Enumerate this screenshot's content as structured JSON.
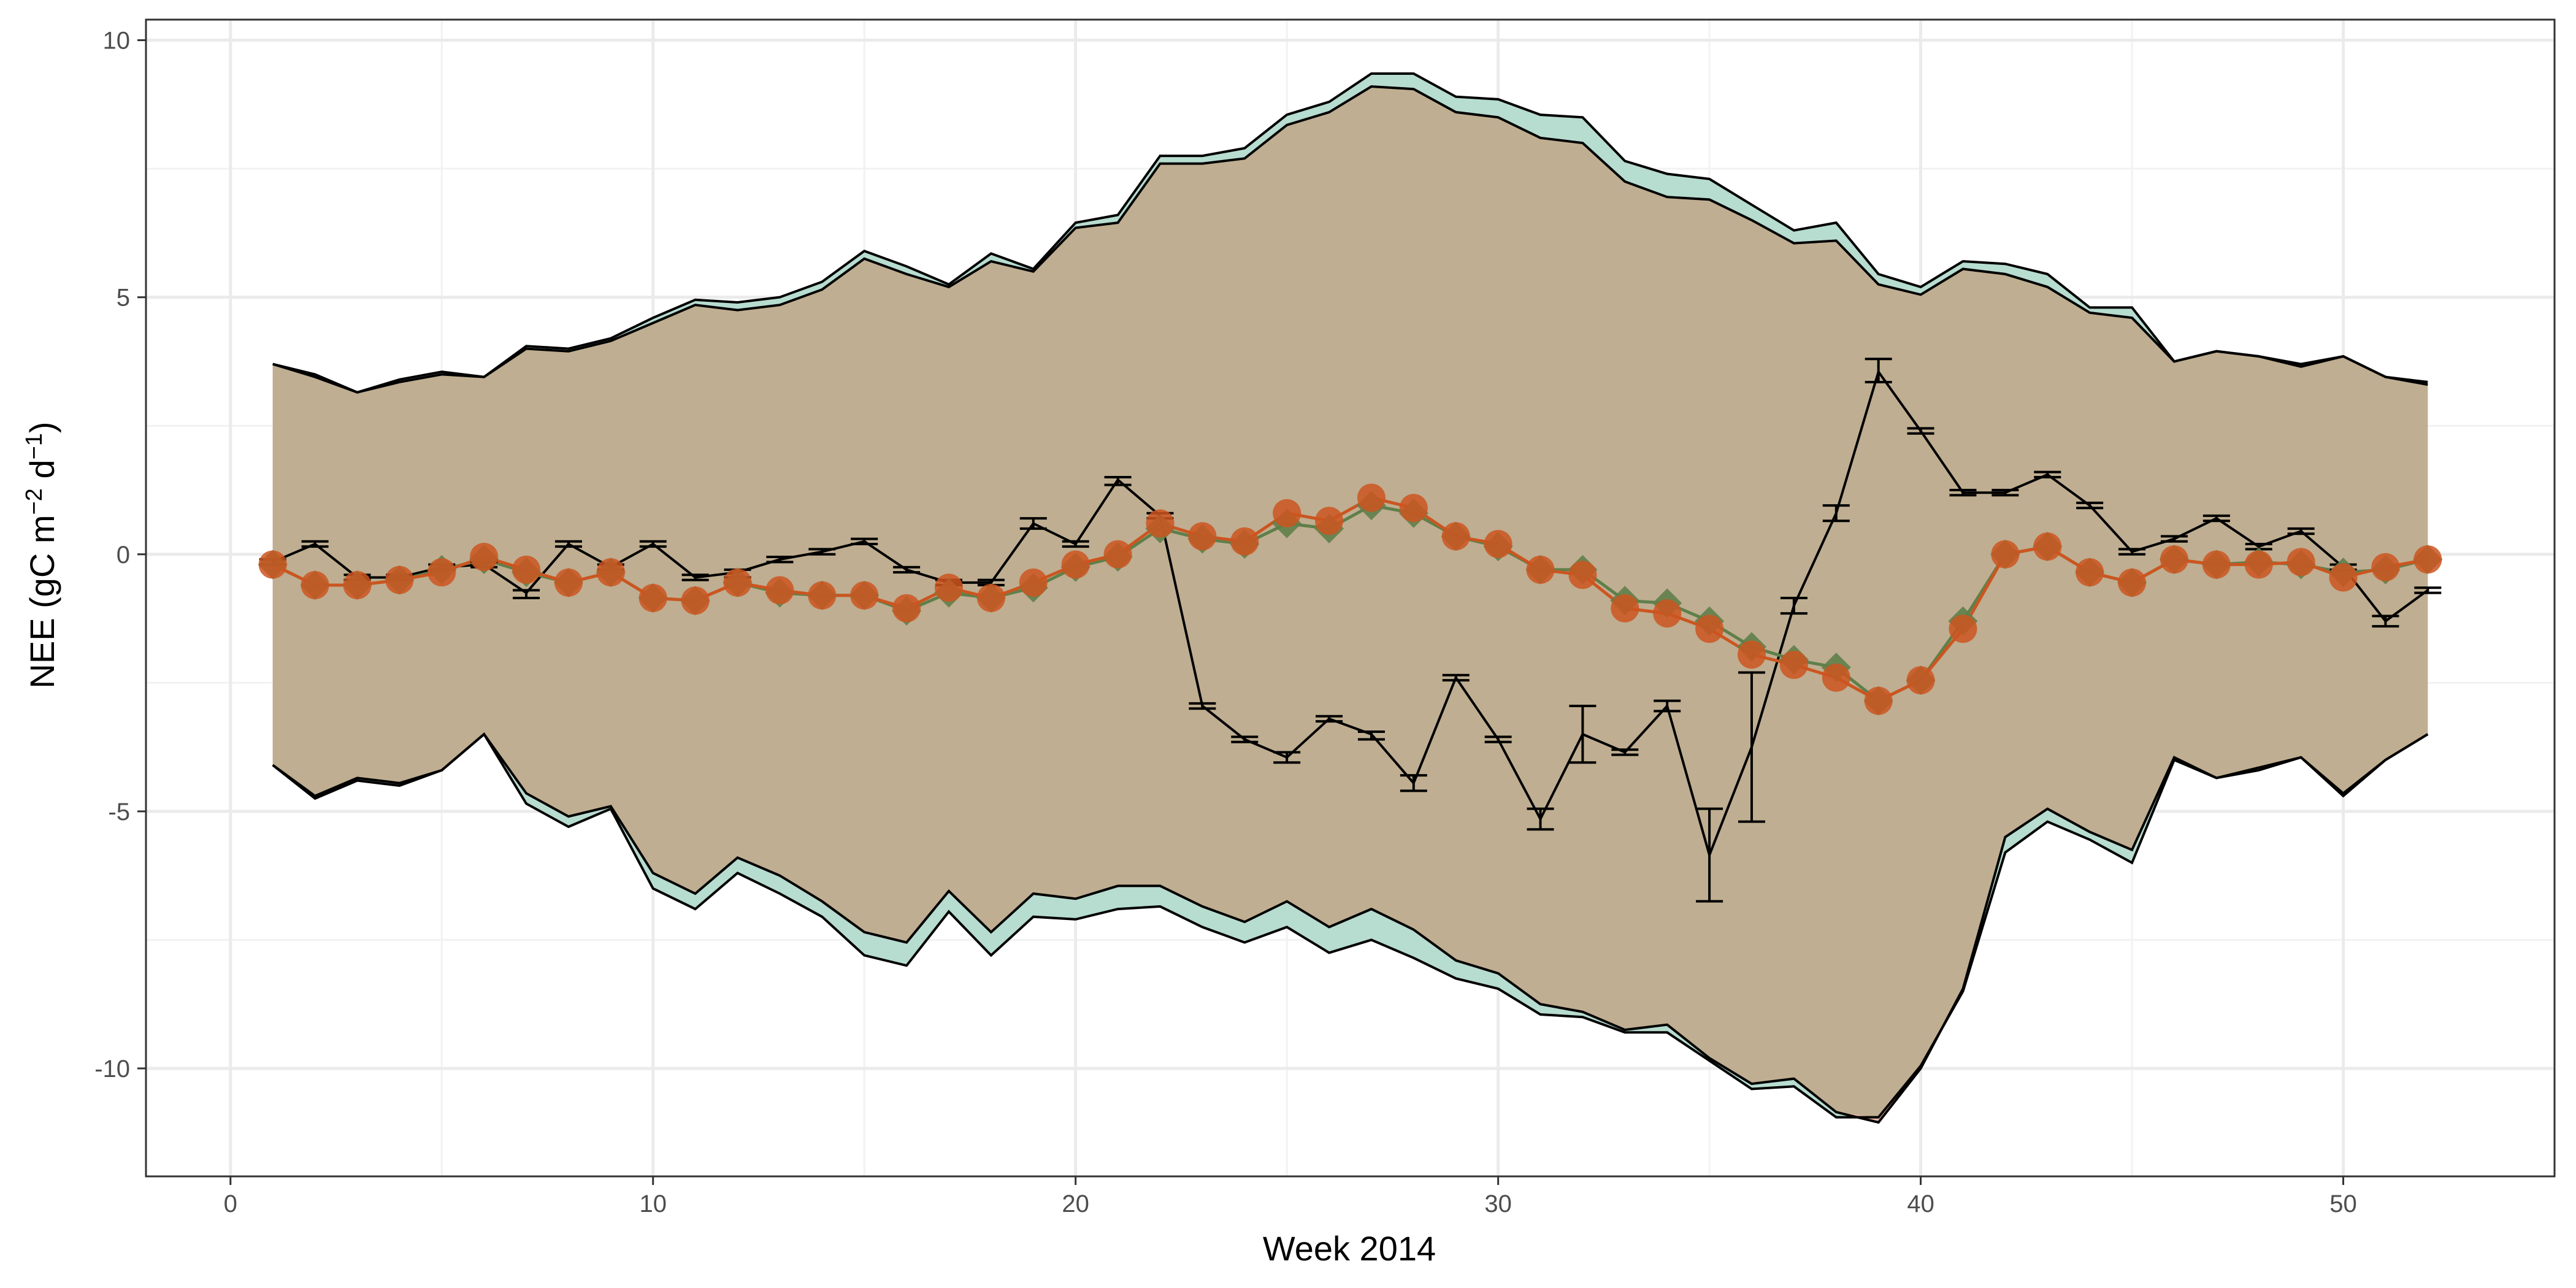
{
  "chart_data": {
    "type": "line",
    "xlabel": "Week 2014",
    "ylabel": {
      "main": "NEE (gC m",
      "sup1": "−2",
      "mid": " d",
      "sup2": "−1",
      "end": ")"
    },
    "xlim": [
      -2,
      55
    ],
    "ylim": [
      -12.1,
      10.4
    ],
    "x_ticks": [
      0,
      10,
      20,
      30,
      40,
      50
    ],
    "x_tick_labels": [
      "0",
      "10",
      "20",
      "30",
      "40",
      "50"
    ],
    "y_ticks": [
      -10,
      -5,
      0,
      5,
      10
    ],
    "y_tick_labels": [
      "-10",
      "-5",
      "0",
      "5",
      "10"
    ],
    "grid": true,
    "colors": {
      "band_teal": "#b7dcd0",
      "band_red": "#e9b7a9",
      "band_overlap": "#bfae91",
      "green_series": "#5f7f4a",
      "orange_series": "#cc5520",
      "observed": "#000000"
    },
    "x": [
      1,
      2,
      3,
      4,
      5,
      6,
      7,
      8,
      9,
      10,
      11,
      12,
      13,
      14,
      15,
      16,
      17,
      18,
      19,
      20,
      21,
      22,
      23,
      24,
      25,
      26,
      27,
      28,
      29,
      30,
      31,
      32,
      33,
      34,
      35,
      36,
      37,
      38,
      39,
      40,
      41,
      42,
      43,
      44,
      45,
      46,
      47,
      48,
      49,
      50,
      51,
      52
    ],
    "bands": {
      "teal_upper": [
        3.7,
        3.5,
        3.15,
        3.4,
        3.55,
        3.45,
        4.05,
        4.0,
        4.2,
        4.6,
        4.95,
        4.9,
        5.0,
        5.3,
        5.9,
        5.6,
        5.25,
        5.85,
        5.55,
        6.45,
        6.6,
        7.75,
        7.75,
        7.9,
        8.55,
        8.8,
        9.35,
        9.35,
        8.9,
        8.85,
        8.55,
        8.5,
        7.65,
        7.4,
        7.3,
        6.8,
        6.3,
        6.45,
        5.45,
        5.2,
        5.7,
        5.65,
        5.45,
        4.8,
        4.8,
        3.75,
        3.95,
        3.85,
        3.7,
        3.85,
        3.45,
        3.35
      ],
      "red_upper": [
        3.7,
        3.45,
        3.15,
        3.35,
        3.5,
        3.45,
        4.0,
        3.95,
        4.15,
        4.5,
        4.85,
        4.75,
        4.85,
        5.15,
        5.75,
        5.45,
        5.2,
        5.7,
        5.5,
        6.35,
        6.45,
        7.6,
        7.6,
        7.7,
        8.35,
        8.6,
        9.1,
        9.05,
        8.6,
        8.5,
        8.1,
        8.0,
        7.25,
        6.95,
        6.9,
        6.5,
        6.05,
        6.1,
        5.25,
        5.05,
        5.55,
        5.45,
        5.2,
        4.7,
        4.6,
        3.75,
        3.95,
        3.85,
        3.65,
        3.85,
        3.45,
        3.3
      ],
      "teal_lower": [
        -4.1,
        -4.75,
        -4.4,
        -4.5,
        -4.2,
        -3.5,
        -4.85,
        -5.3,
        -4.95,
        -6.5,
        -6.9,
        -6.2,
        -6.6,
        -7.05,
        -7.8,
        -8.0,
        -6.95,
        -7.8,
        -7.05,
        -7.1,
        -6.9,
        -6.85,
        -7.25,
        -7.55,
        -7.25,
        -7.75,
        -7.5,
        -7.85,
        -8.25,
        -8.45,
        -8.95,
        -9.0,
        -9.3,
        -9.3,
        -9.85,
        -10.4,
        -10.35,
        -10.95,
        -10.95,
        -9.95,
        -8.5,
        -5.8,
        -5.2,
        -5.55,
        -6.0,
        -4.0,
        -4.35,
        -4.15,
        -3.95,
        -4.7,
        -4.0,
        -3.5
      ],
      "red_lower": [
        -4.1,
        -4.7,
        -4.35,
        -4.45,
        -4.2,
        -3.5,
        -4.65,
        -5.1,
        -4.9,
        -6.2,
        -6.6,
        -5.9,
        -6.25,
        -6.75,
        -7.35,
        -7.55,
        -6.55,
        -7.35,
        -6.6,
        -6.7,
        -6.45,
        -6.45,
        -6.85,
        -7.15,
        -6.75,
        -7.25,
        -6.9,
        -7.3,
        -7.9,
        -8.15,
        -8.75,
        -8.9,
        -9.25,
        -9.15,
        -9.8,
        -10.3,
        -10.2,
        -10.85,
        -11.05,
        -10.0,
        -8.45,
        -5.5,
        -4.95,
        -5.4,
        -5.75,
        -3.95,
        -4.35,
        -4.2,
        -3.95,
        -4.65,
        -4.0,
        -3.5
      ]
    },
    "series": [
      {
        "values": [
          -0.2,
          -0.6,
          -0.6,
          -0.5,
          -0.3,
          -0.1,
          -0.35,
          -0.55,
          -0.35,
          -0.85,
          -0.9,
          -0.55,
          -0.75,
          -0.8,
          -0.8,
          -1.1,
          -0.75,
          -0.85,
          -0.65,
          -0.25,
          -0.05,
          0.5,
          0.3,
          0.2,
          0.6,
          0.5,
          0.95,
          0.8,
          0.35,
          0.15,
          -0.3,
          -0.3,
          -0.9,
          -0.95,
          -1.3,
          -1.8,
          -2.05,
          -2.2,
          -2.85,
          -2.45,
          -1.3,
          0.0,
          0.15,
          -0.35,
          -0.55,
          -0.1,
          -0.2,
          -0.15,
          -0.2,
          -0.35,
          -0.3,
          -0.1
        ]
      },
      {
        "values": [
          -0.2,
          -0.6,
          -0.6,
          -0.5,
          -0.35,
          -0.05,
          -0.3,
          -0.55,
          -0.35,
          -0.85,
          -0.9,
          -0.55,
          -0.7,
          -0.8,
          -0.8,
          -1.05,
          -0.65,
          -0.85,
          -0.55,
          -0.2,
          0.0,
          0.6,
          0.35,
          0.25,
          0.8,
          0.65,
          1.1,
          0.9,
          0.35,
          0.2,
          -0.3,
          -0.4,
          -1.05,
          -1.15,
          -1.45,
          -1.95,
          -2.15,
          -2.4,
          -2.85,
          -2.45,
          -1.45,
          0.0,
          0.15,
          -0.35,
          -0.55,
          -0.1,
          -0.2,
          -0.2,
          -0.15,
          -0.45,
          -0.25,
          -0.1
        ]
      },
      {
        "values": [
          -0.15,
          0.2,
          -0.45,
          -0.45,
          -0.25,
          -0.2,
          -0.75,
          0.2,
          -0.25,
          0.2,
          -0.45,
          -0.35,
          -0.1,
          0.05,
          0.25,
          -0.3,
          -0.55,
          -0.55,
          0.6,
          0.2,
          1.45,
          0.75,
          -2.95,
          -3.6,
          -3.95,
          -3.2,
          -3.5,
          -4.45,
          -2.4,
          -3.6,
          -5.15,
          -3.5,
          -3.85,
          -2.95,
          -5.85,
          -3.75,
          -1.0,
          0.8,
          3.55,
          2.4,
          1.2,
          1.2,
          1.55,
          0.95,
          0.05,
          0.3,
          0.7,
          0.15,
          0.45,
          -0.25,
          -1.3,
          -0.7
        ],
        "err_low": [
          -0.2,
          0.15,
          -0.5,
          -0.5,
          -0.3,
          -0.25,
          -0.85,
          0.15,
          -0.3,
          0.15,
          -0.5,
          -0.45,
          -0.15,
          0.0,
          0.2,
          -0.35,
          -0.6,
          -0.6,
          0.5,
          0.15,
          1.35,
          0.7,
          -3.0,
          -3.65,
          -4.05,
          -3.25,
          -3.6,
          -4.6,
          -2.45,
          -3.65,
          -5.35,
          -4.05,
          -3.9,
          -3.05,
          -6.75,
          -5.2,
          -1.15,
          0.65,
          3.35,
          2.35,
          1.15,
          1.15,
          1.5,
          0.9,
          0.0,
          0.25,
          0.65,
          0.1,
          0.4,
          -0.3,
          -1.4,
          -0.75
        ],
        "err_high": [
          -0.1,
          0.25,
          -0.4,
          -0.4,
          -0.2,
          -0.15,
          -0.7,
          0.25,
          -0.2,
          0.25,
          -0.4,
          -0.3,
          -0.05,
          0.1,
          0.3,
          -0.25,
          -0.5,
          -0.5,
          0.7,
          0.25,
          1.5,
          0.8,
          -2.9,
          -3.55,
          -3.85,
          -3.15,
          -3.45,
          -4.3,
          -2.35,
          -3.55,
          -4.95,
          -2.95,
          -3.8,
          -2.85,
          -4.95,
          -2.3,
          -0.85,
          0.95,
          3.8,
          2.45,
          1.25,
          1.25,
          1.6,
          1.0,
          0.1,
          0.35,
          0.75,
          0.2,
          0.5,
          -0.2,
          -1.2,
          -0.65
        ]
      }
    ]
  }
}
